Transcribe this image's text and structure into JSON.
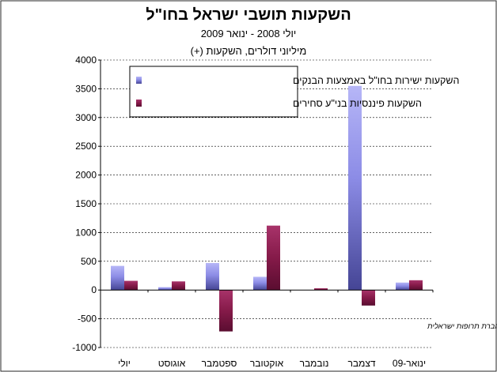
{
  "chart_data": {
    "type": "bar",
    "title": "השקעות תושבי ישראל בחו\"ל",
    "subtitle": "יולי 2008 - ינואר 2009",
    "units_label": "מיליוני דולרים, השקעות (+)",
    "categories": [
      "יולי",
      "אוגוסט",
      "ספטמבר",
      "אוקטובר",
      "נובמבר",
      "דצמבר",
      "ינואר-09"
    ],
    "series": [
      {
        "name": "השקעות ישירות בחו\"ל באמצעות הבנקים",
        "color": "#8C8CE6",
        "values": [
          420,
          50,
          470,
          230,
          0,
          3550,
          130
        ]
      },
      {
        "name": "השקעות פיננסיות בני\"ע סחירים",
        "color": "#8B1A4A",
        "values": [
          160,
          150,
          -720,
          1120,
          30,
          -270,
          170
        ]
      }
    ],
    "ylim": [
      -1000,
      4000
    ],
    "yticks": [
      "-1000",
      "-500",
      "0",
      "500",
      "1000",
      "1500",
      "2000",
      "2500",
      "3000",
      "3500",
      "4000"
    ],
    "grid": true,
    "legend_position": "top-left",
    "annotation": "דצמבר כולל רכישה גדולה שבוצעה ע\"י חברת תרופות ישראלית"
  }
}
